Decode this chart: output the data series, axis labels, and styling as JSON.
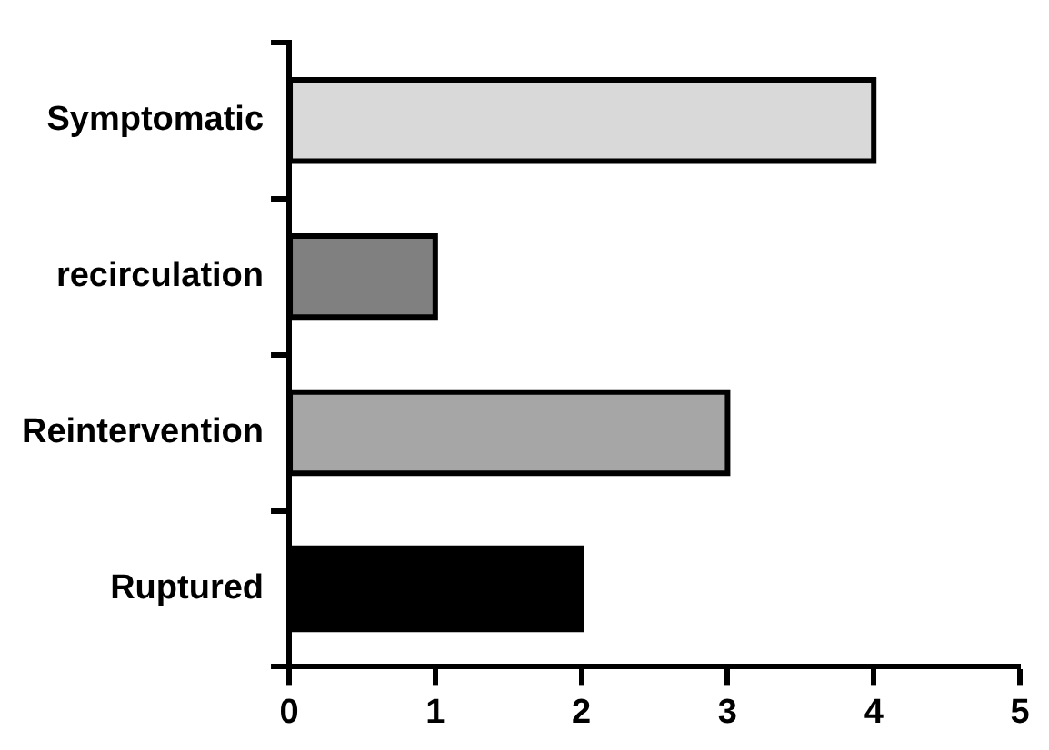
{
  "chart_data": {
    "type": "bar",
    "orientation": "horizontal",
    "categories": [
      "Symptomatic",
      "recirculation",
      "Reintervention",
      "Ruptured"
    ],
    "values": [
      4,
      1,
      3,
      2
    ],
    "colors": [
      "#d9d9d9",
      "#808080",
      "#a6a6a6",
      "#000000"
    ],
    "xlim": [
      0,
      5
    ],
    "xticks": [
      0,
      1,
      2,
      3,
      4,
      5
    ],
    "grid": false,
    "legend": false
  }
}
